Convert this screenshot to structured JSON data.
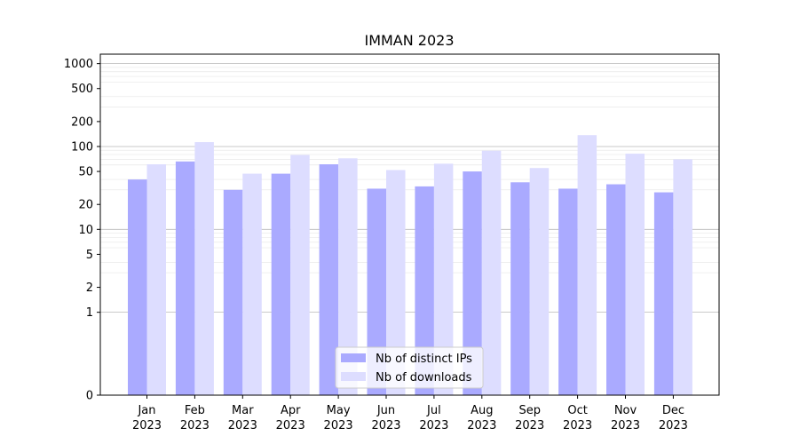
{
  "chart_data": {
    "type": "bar",
    "title": "IMMAN 2023",
    "xlabel": "",
    "ylabel": "",
    "yscale": "symlog",
    "ylim": [
      0,
      1300
    ],
    "yticks": [
      0,
      1,
      2,
      5,
      10,
      20,
      50,
      100,
      200,
      500,
      1000
    ],
    "grid": true,
    "legend_position": "bottom-center",
    "categories": [
      {
        "month": "Jan",
        "year": "2023"
      },
      {
        "month": "Feb",
        "year": "2023"
      },
      {
        "month": "Mar",
        "year": "2023"
      },
      {
        "month": "Apr",
        "year": "2023"
      },
      {
        "month": "May",
        "year": "2023"
      },
      {
        "month": "Jun",
        "year": "2023"
      },
      {
        "month": "Jul",
        "year": "2023"
      },
      {
        "month": "Aug",
        "year": "2023"
      },
      {
        "month": "Sep",
        "year": "2023"
      },
      {
        "month": "Oct",
        "year": "2023"
      },
      {
        "month": "Nov",
        "year": "2023"
      },
      {
        "month": "Dec",
        "year": "2023"
      }
    ],
    "series": [
      {
        "name": "Nb of distinct IPs",
        "color": "#aaaaff",
        "values": [
          40,
          66,
          30,
          47,
          61,
          31,
          33,
          50,
          37,
          31,
          35,
          28
        ]
      },
      {
        "name": "Nb of downloads",
        "color": "#ddddff",
        "values": [
          61,
          113,
          47,
          79,
          72,
          52,
          62,
          89,
          55,
          137,
          82,
          70
        ]
      }
    ]
  }
}
